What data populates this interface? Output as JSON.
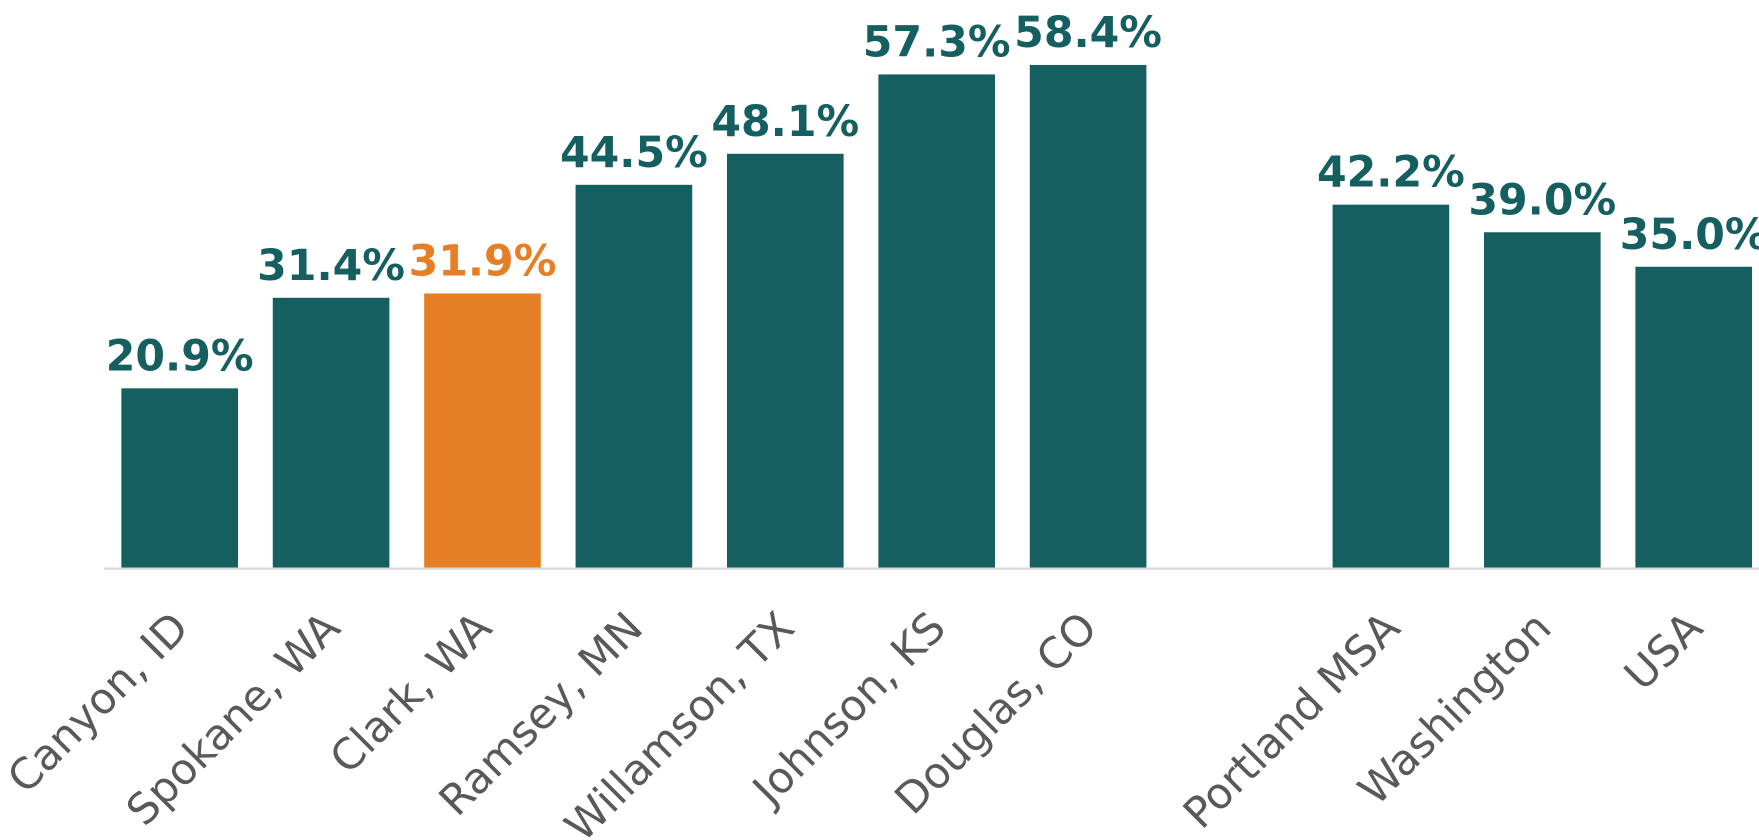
{
  "chart_data": {
    "type": "bar",
    "categories": [
      "Canyon, ID",
      "Spokane, WA",
      "Clark, WA",
      "Ramsey, MN",
      "Willamson, TX",
      "Johnson, KS",
      "Douglas, CO",
      null,
      "Portland MSA",
      "Washington",
      "USA"
    ],
    "values": [
      20.9,
      31.4,
      31.9,
      44.5,
      48.1,
      57.3,
      58.4,
      null,
      42.2,
      39.0,
      35.0
    ],
    "value_labels": [
      "20.9%",
      "31.4%",
      "31.9%",
      "44.5%",
      "48.1%",
      "57.3%",
      "58.4%",
      null,
      "42.2%",
      "39.0%",
      "35.0%"
    ],
    "colors": [
      "#155f61",
      "#155f61",
      "#e57e25",
      "#155f61",
      "#155f61",
      "#155f61",
      "#155f61",
      null,
      "#155f61",
      "#155f61",
      "#155f61"
    ],
    "ylim": [
      0,
      60
    ]
  }
}
